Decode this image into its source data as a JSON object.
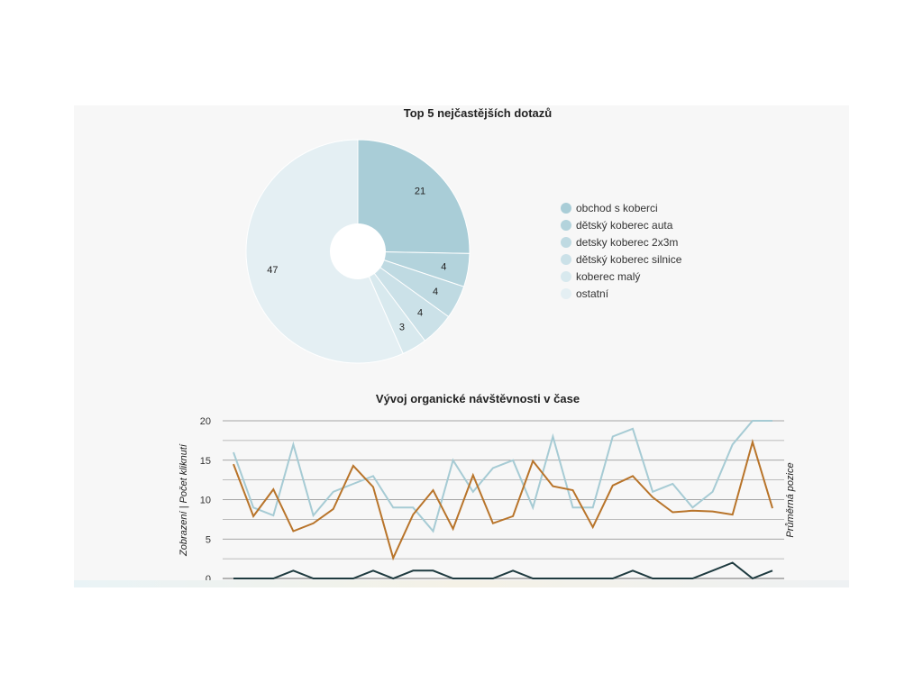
{
  "chart_data": [
    {
      "type": "pie",
      "title": "Top 5 nejčastějších dotazů",
      "slices": [
        {
          "label": "obchod s koberci",
          "value": 21,
          "color": "#a9cdd7"
        },
        {
          "label": "dětský koberec auta",
          "value": 4,
          "color": "#b3d3dc"
        },
        {
          "label": "detsky koberec 2x3m",
          "value": 4,
          "color": "#bfdae2"
        },
        {
          "label": "dětský koberec silnice",
          "value": 4,
          "color": "#cbe1e8"
        },
        {
          "label": "koberec malý",
          "value": 3,
          "color": "#d8e9ee"
        },
        {
          "label": "ostatní",
          "value": 47,
          "color": "#e4eff3"
        }
      ],
      "slice_labels": [
        "21",
        "4",
        "4",
        "4",
        "3",
        "47"
      ],
      "legend_position": "right",
      "donut_hole": true
    },
    {
      "type": "line",
      "title": "Vývoj organické návštěvnosti v čase",
      "ylabel": "Zobrazení | Počet kliknutí",
      "y2label": "Průměrná pozice",
      "ylim": [
        0,
        20
      ],
      "yticks": [
        "0",
        "5",
        "10",
        "15",
        "20"
      ],
      "grid": true,
      "series": [
        {
          "color": "#a6cbd4",
          "values": [
            16,
            9,
            8,
            17,
            8,
            11,
            12,
            13,
            9,
            9,
            6,
            15,
            11,
            14,
            15,
            9,
            18,
            9,
            9,
            18,
            19,
            11,
            12,
            9,
            11,
            17,
            20,
            20
          ]
        },
        {
          "color": "#b8742a",
          "values": [
            14.5,
            7.9,
            11.3,
            6.0,
            7.0,
            8.8,
            14.3,
            11.6,
            2.6,
            8.1,
            11.2,
            6.3,
            13.1,
            7.0,
            7.9,
            14.9,
            11.7,
            11.2,
            6.5,
            11.8,
            13.0,
            10.3,
            8.4,
            8.6,
            8.5,
            8.1,
            17.3,
            8.9
          ]
        },
        {
          "color": "#1f3b40",
          "values": [
            0,
            0,
            0,
            1,
            0,
            0,
            0,
            1,
            0,
            1,
            1,
            0,
            0,
            0,
            1,
            0,
            0,
            0,
            0,
            0,
            1,
            0,
            0,
            0,
            1,
            2,
            0,
            1
          ]
        }
      ]
    }
  ]
}
